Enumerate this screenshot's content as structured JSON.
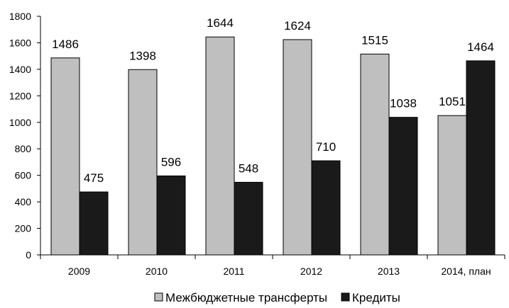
{
  "chart_data": {
    "type": "bar",
    "categories": [
      "2009",
      "2010",
      "2011",
      "2012",
      "2013",
      "2014, план"
    ],
    "series": [
      {
        "name": "Межбюджетные трансферты",
        "values": [
          1486,
          1398,
          1644,
          1624,
          1515,
          1051
        ],
        "color": "#bfbfbf"
      },
      {
        "name": "Кредиты",
        "values": [
          475,
          596,
          548,
          710,
          1038,
          1464
        ],
        "color": "#1a1a1a"
      }
    ],
    "ylim": [
      0,
      1800
    ],
    "yticks": [
      "0",
      "200",
      "400",
      "600",
      "800",
      "1000",
      "1200",
      "1400",
      "1600",
      "1800"
    ],
    "grid": false,
    "legend": "bottom",
    "title": "",
    "xlabel": "",
    "ylabel": ""
  }
}
